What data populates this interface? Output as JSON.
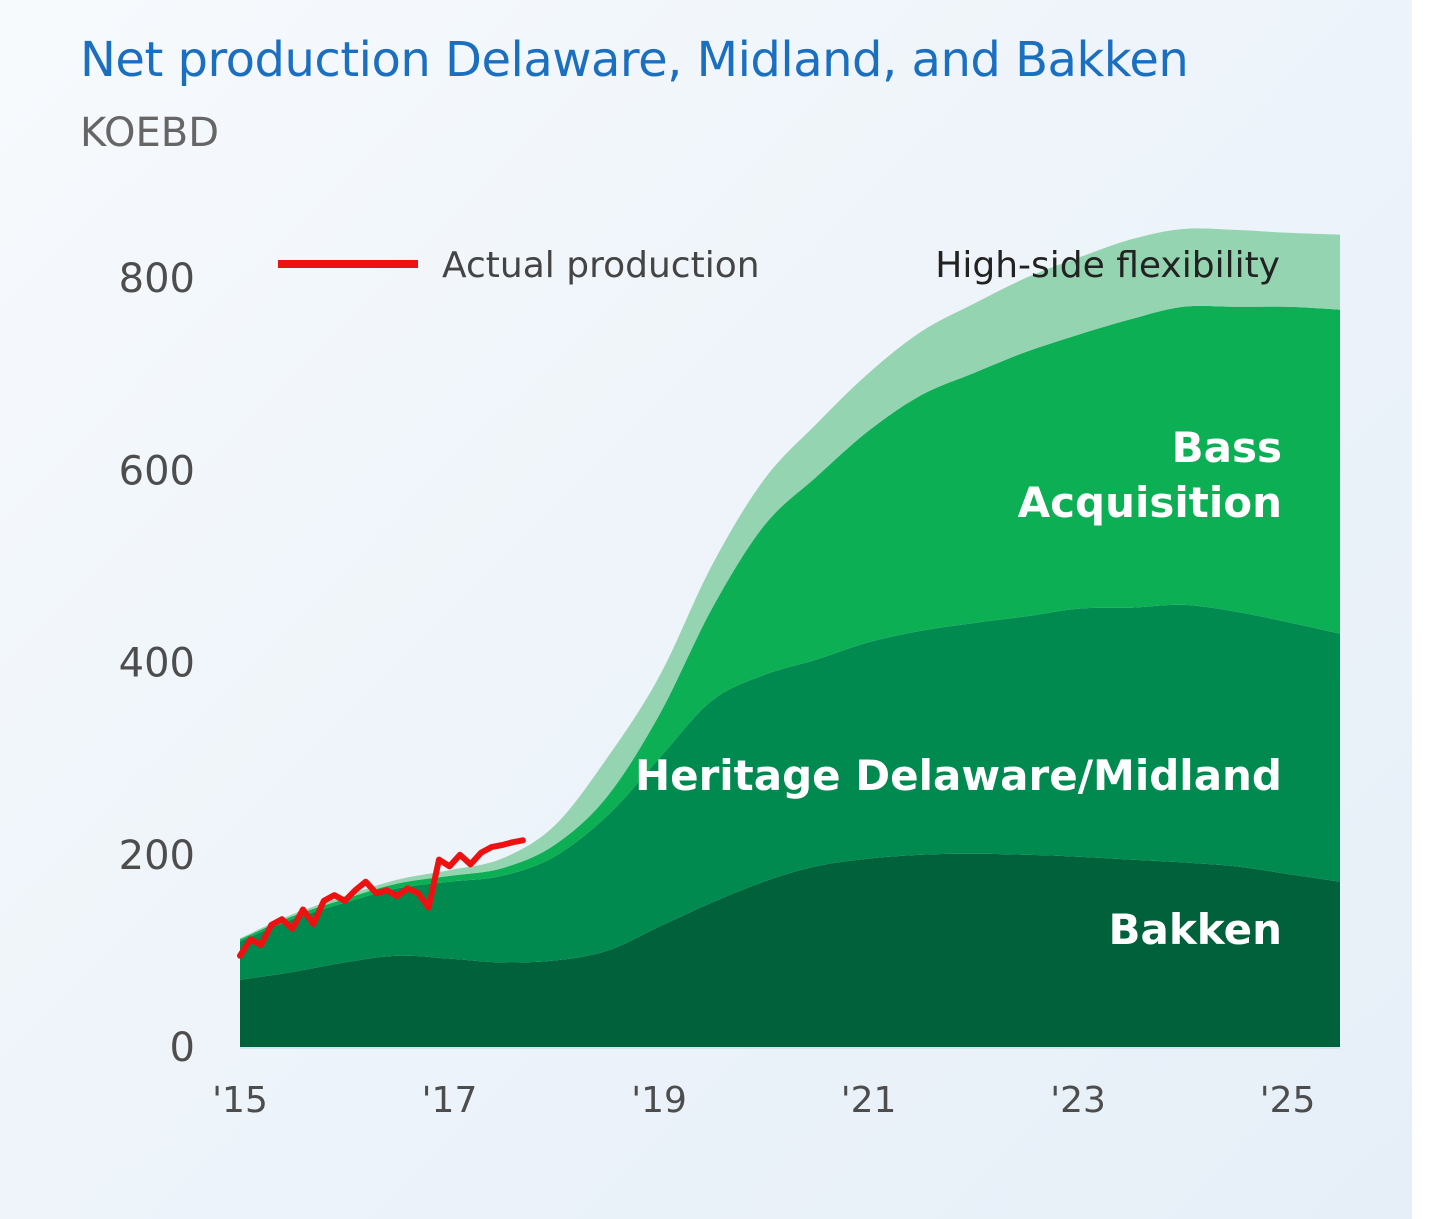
{
  "header": {
    "title": "Net production Delaware, Midland, and Bakken",
    "subtitle": "KOEBD"
  },
  "chart_data": {
    "type": "area",
    "stacked": true,
    "title": "Net production Delaware, Midland, and Bakken",
    "ylabel": "KOEBD",
    "xlim": [
      2015,
      2025.5
    ],
    "ylim": [
      0,
      850
    ],
    "y_ticks": [
      "0",
      "200",
      "400",
      "600",
      "800"
    ],
    "y_tick_values": [
      0,
      200,
      400,
      600,
      800
    ],
    "x_ticks": [
      "'15",
      "'17",
      "'19",
      "'21",
      "'23",
      "'25"
    ],
    "x_tick_values": [
      2015,
      2017,
      2019,
      2021,
      2023,
      2025
    ],
    "grid": false,
    "legend_position": "top",
    "x": [
      2015,
      2015.5,
      2016,
      2016.5,
      2017,
      2017.5,
      2018,
      2018.5,
      2019,
      2019.5,
      2020,
      2020.5,
      2021,
      2021.5,
      2022,
      2022.5,
      2023,
      2023.5,
      2024,
      2024.5,
      2025,
      2025.5
    ],
    "series": [
      {
        "name": "Bakken",
        "color": "#00613b",
        "values": [
          70,
          78,
          88,
          95,
          92,
          88,
          90,
          100,
          125,
          150,
          172,
          188,
          196,
          200,
          201,
          200,
          198,
          195,
          192,
          188,
          180,
          172
        ]
      },
      {
        "name": "Heritage Delaware/Midland",
        "color": "#008a4f",
        "values": [
          40,
          55,
          62,
          70,
          80,
          90,
          108,
          140,
          175,
          210,
          215,
          215,
          225,
          233,
          240,
          248,
          258,
          262,
          268,
          265,
          262,
          258
        ]
      },
      {
        "name": "Bass Acquisition",
        "color": "#0daf55",
        "values": [
          2,
          3,
          4,
          5,
          6,
          8,
          12,
          20,
          45,
          95,
          155,
          190,
          220,
          245,
          260,
          275,
          285,
          300,
          310,
          317,
          328,
          337
        ]
      },
      {
        "name": "High-side flexibility",
        "color": "#95d4b0",
        "values": [
          1,
          2,
          3,
          4,
          6,
          10,
          20,
          40,
          40,
          45,
          48,
          55,
          60,
          66,
          72,
          77,
          80,
          83,
          81,
          80,
          77,
          78
        ]
      }
    ],
    "actual_production": {
      "name": "Actual production",
      "color": "#ee1111",
      "x": [
        2015,
        2015.1,
        2015.2,
        2015.3,
        2015.4,
        2015.5,
        2015.6,
        2015.7,
        2015.8,
        2015.9,
        2016,
        2016.1,
        2016.2,
        2016.3,
        2016.4,
        2016.5,
        2016.6,
        2016.7,
        2016.8,
        2016.9,
        2017,
        2017.1,
        2017.2,
        2017.3,
        2017.4,
        2017.5,
        2017.6,
        2017.7
      ],
      "values": [
        95,
        112,
        106,
        127,
        133,
        123,
        143,
        128,
        152,
        158,
        152,
        163,
        172,
        160,
        163,
        157,
        165,
        160,
        145,
        195,
        188,
        200,
        190,
        202,
        208,
        210,
        213,
        215
      ]
    },
    "area_labels": [
      {
        "text_lines": [
          "Bass",
          "Acquisition"
        ]
      },
      {
        "text_lines": [
          "Heritage Delaware/Midland"
        ]
      },
      {
        "text_lines": [
          "Bakken"
        ]
      }
    ],
    "flex_label": "High-side flexibility",
    "legend_label": "Actual production"
  }
}
